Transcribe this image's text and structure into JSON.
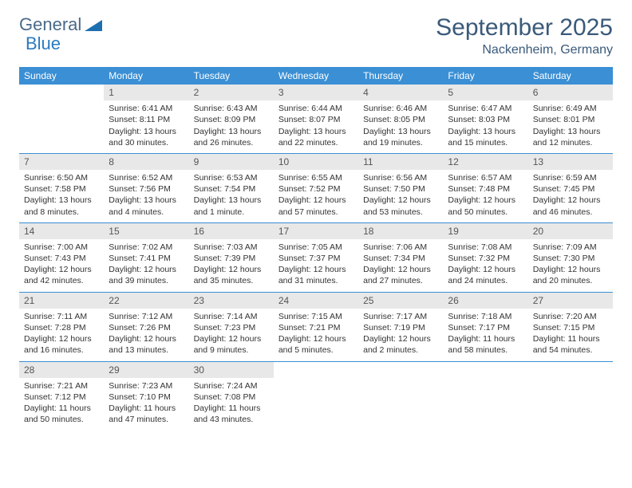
{
  "brand": {
    "part1": "General",
    "part2": "Blue"
  },
  "title": "September 2025",
  "location": "Nackenheim, Germany",
  "colors": {
    "header_bg": "#3b8fd4",
    "header_text": "#ffffff",
    "daynum_bg": "#e8e8e8",
    "rule": "#3b8fd4",
    "title_color": "#3a5a7a"
  },
  "weekdays": [
    "Sunday",
    "Monday",
    "Tuesday",
    "Wednesday",
    "Thursday",
    "Friday",
    "Saturday"
  ],
  "weeks": [
    [
      {
        "n": "",
        "sr": "",
        "ss": "",
        "d1": "",
        "d2": ""
      },
      {
        "n": "1",
        "sr": "Sunrise: 6:41 AM",
        "ss": "Sunset: 8:11 PM",
        "d1": "Daylight: 13 hours",
        "d2": "and 30 minutes."
      },
      {
        "n": "2",
        "sr": "Sunrise: 6:43 AM",
        "ss": "Sunset: 8:09 PM",
        "d1": "Daylight: 13 hours",
        "d2": "and 26 minutes."
      },
      {
        "n": "3",
        "sr": "Sunrise: 6:44 AM",
        "ss": "Sunset: 8:07 PM",
        "d1": "Daylight: 13 hours",
        "d2": "and 22 minutes."
      },
      {
        "n": "4",
        "sr": "Sunrise: 6:46 AM",
        "ss": "Sunset: 8:05 PM",
        "d1": "Daylight: 13 hours",
        "d2": "and 19 minutes."
      },
      {
        "n": "5",
        "sr": "Sunrise: 6:47 AM",
        "ss": "Sunset: 8:03 PM",
        "d1": "Daylight: 13 hours",
        "d2": "and 15 minutes."
      },
      {
        "n": "6",
        "sr": "Sunrise: 6:49 AM",
        "ss": "Sunset: 8:01 PM",
        "d1": "Daylight: 13 hours",
        "d2": "and 12 minutes."
      }
    ],
    [
      {
        "n": "7",
        "sr": "Sunrise: 6:50 AM",
        "ss": "Sunset: 7:58 PM",
        "d1": "Daylight: 13 hours",
        "d2": "and 8 minutes."
      },
      {
        "n": "8",
        "sr": "Sunrise: 6:52 AM",
        "ss": "Sunset: 7:56 PM",
        "d1": "Daylight: 13 hours",
        "d2": "and 4 minutes."
      },
      {
        "n": "9",
        "sr": "Sunrise: 6:53 AM",
        "ss": "Sunset: 7:54 PM",
        "d1": "Daylight: 13 hours",
        "d2": "and 1 minute."
      },
      {
        "n": "10",
        "sr": "Sunrise: 6:55 AM",
        "ss": "Sunset: 7:52 PM",
        "d1": "Daylight: 12 hours",
        "d2": "and 57 minutes."
      },
      {
        "n": "11",
        "sr": "Sunrise: 6:56 AM",
        "ss": "Sunset: 7:50 PM",
        "d1": "Daylight: 12 hours",
        "d2": "and 53 minutes."
      },
      {
        "n": "12",
        "sr": "Sunrise: 6:57 AM",
        "ss": "Sunset: 7:48 PM",
        "d1": "Daylight: 12 hours",
        "d2": "and 50 minutes."
      },
      {
        "n": "13",
        "sr": "Sunrise: 6:59 AM",
        "ss": "Sunset: 7:45 PM",
        "d1": "Daylight: 12 hours",
        "d2": "and 46 minutes."
      }
    ],
    [
      {
        "n": "14",
        "sr": "Sunrise: 7:00 AM",
        "ss": "Sunset: 7:43 PM",
        "d1": "Daylight: 12 hours",
        "d2": "and 42 minutes."
      },
      {
        "n": "15",
        "sr": "Sunrise: 7:02 AM",
        "ss": "Sunset: 7:41 PM",
        "d1": "Daylight: 12 hours",
        "d2": "and 39 minutes."
      },
      {
        "n": "16",
        "sr": "Sunrise: 7:03 AM",
        "ss": "Sunset: 7:39 PM",
        "d1": "Daylight: 12 hours",
        "d2": "and 35 minutes."
      },
      {
        "n": "17",
        "sr": "Sunrise: 7:05 AM",
        "ss": "Sunset: 7:37 PM",
        "d1": "Daylight: 12 hours",
        "d2": "and 31 minutes."
      },
      {
        "n": "18",
        "sr": "Sunrise: 7:06 AM",
        "ss": "Sunset: 7:34 PM",
        "d1": "Daylight: 12 hours",
        "d2": "and 27 minutes."
      },
      {
        "n": "19",
        "sr": "Sunrise: 7:08 AM",
        "ss": "Sunset: 7:32 PM",
        "d1": "Daylight: 12 hours",
        "d2": "and 24 minutes."
      },
      {
        "n": "20",
        "sr": "Sunrise: 7:09 AM",
        "ss": "Sunset: 7:30 PM",
        "d1": "Daylight: 12 hours",
        "d2": "and 20 minutes."
      }
    ],
    [
      {
        "n": "21",
        "sr": "Sunrise: 7:11 AM",
        "ss": "Sunset: 7:28 PM",
        "d1": "Daylight: 12 hours",
        "d2": "and 16 minutes."
      },
      {
        "n": "22",
        "sr": "Sunrise: 7:12 AM",
        "ss": "Sunset: 7:26 PM",
        "d1": "Daylight: 12 hours",
        "d2": "and 13 minutes."
      },
      {
        "n": "23",
        "sr": "Sunrise: 7:14 AM",
        "ss": "Sunset: 7:23 PM",
        "d1": "Daylight: 12 hours",
        "d2": "and 9 minutes."
      },
      {
        "n": "24",
        "sr": "Sunrise: 7:15 AM",
        "ss": "Sunset: 7:21 PM",
        "d1": "Daylight: 12 hours",
        "d2": "and 5 minutes."
      },
      {
        "n": "25",
        "sr": "Sunrise: 7:17 AM",
        "ss": "Sunset: 7:19 PM",
        "d1": "Daylight: 12 hours",
        "d2": "and 2 minutes."
      },
      {
        "n": "26",
        "sr": "Sunrise: 7:18 AM",
        "ss": "Sunset: 7:17 PM",
        "d1": "Daylight: 11 hours",
        "d2": "and 58 minutes."
      },
      {
        "n": "27",
        "sr": "Sunrise: 7:20 AM",
        "ss": "Sunset: 7:15 PM",
        "d1": "Daylight: 11 hours",
        "d2": "and 54 minutes."
      }
    ],
    [
      {
        "n": "28",
        "sr": "Sunrise: 7:21 AM",
        "ss": "Sunset: 7:12 PM",
        "d1": "Daylight: 11 hours",
        "d2": "and 50 minutes."
      },
      {
        "n": "29",
        "sr": "Sunrise: 7:23 AM",
        "ss": "Sunset: 7:10 PM",
        "d1": "Daylight: 11 hours",
        "d2": "and 47 minutes."
      },
      {
        "n": "30",
        "sr": "Sunrise: 7:24 AM",
        "ss": "Sunset: 7:08 PM",
        "d1": "Daylight: 11 hours",
        "d2": "and 43 minutes."
      },
      {
        "n": "",
        "sr": "",
        "ss": "",
        "d1": "",
        "d2": ""
      },
      {
        "n": "",
        "sr": "",
        "ss": "",
        "d1": "",
        "d2": ""
      },
      {
        "n": "",
        "sr": "",
        "ss": "",
        "d1": "",
        "d2": ""
      },
      {
        "n": "",
        "sr": "",
        "ss": "",
        "d1": "",
        "d2": ""
      }
    ]
  ]
}
